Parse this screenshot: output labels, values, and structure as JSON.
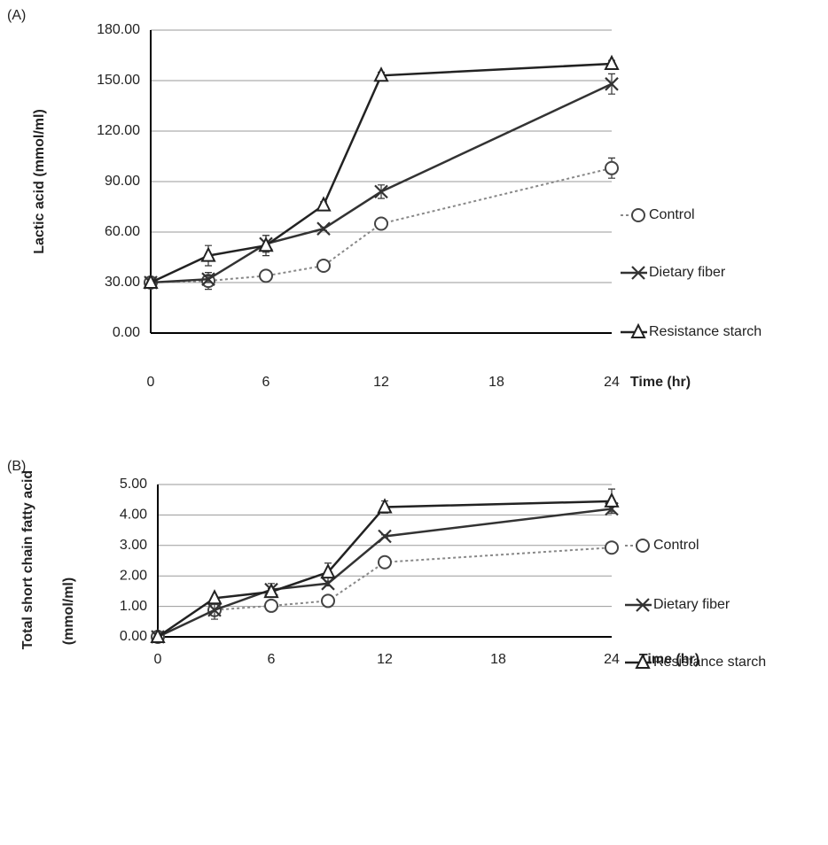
{
  "chart_data": [
    {
      "type": "line",
      "panel_label": "(A)",
      "y_label": [
        "Lactic acid (mmol/ml)"
      ],
      "x_label": "Time (hr)",
      "x": [
        0,
        3,
        6,
        9,
        12,
        24
      ],
      "xlim": [
        0,
        24
      ],
      "xticks": [
        0,
        6,
        12,
        18,
        24
      ],
      "ylim": [
        0,
        180
      ],
      "yticks": [
        {
          "value": 0,
          "label": "0.00"
        },
        {
          "value": 30,
          "label": "30.00"
        },
        {
          "value": 60,
          "label": "60.00"
        },
        {
          "value": 90,
          "label": "90.00"
        },
        {
          "value": 120,
          "label": "120.00"
        },
        {
          "value": 150,
          "label": "150.00"
        },
        {
          "value": 180,
          "label": "180.00"
        }
      ],
      "grid": true,
      "legend": "right",
      "series": [
        {
          "name": "Control",
          "color": "#888888",
          "marker": "circle",
          "line_style": "dotted",
          "values": [
            30,
            31,
            34,
            40,
            65,
            98
          ],
          "errors": [
            1,
            5,
            2,
            2,
            2,
            6
          ]
        },
        {
          "name": "Dietary fiber",
          "color": "#333333",
          "marker": "x",
          "line_style": "solid",
          "values": [
            30,
            32,
            53,
            62,
            84,
            148
          ],
          "errors": [
            1,
            2,
            5,
            1,
            4,
            6
          ]
        },
        {
          "name": "Resistance starch",
          "color": "#222222",
          "marker": "triangle",
          "line_style": "solid",
          "values": [
            30,
            46,
            52,
            76,
            153,
            160
          ],
          "errors": [
            2,
            6,
            6,
            2,
            2,
            2
          ]
        }
      ]
    },
    {
      "type": "line",
      "panel_label": "(B)",
      "y_label": [
        "Total short chain  fatty acid",
        "(mmol/ml)"
      ],
      "x_label": "Time (hr)",
      "x": [
        0,
        3,
        6,
        9,
        12,
        24
      ],
      "xlim": [
        0,
        24
      ],
      "xticks": [
        0,
        6,
        12,
        18,
        24
      ],
      "ylim": [
        0,
        5
      ],
      "yticks": [
        {
          "value": 0,
          "label": "0.00"
        },
        {
          "value": 1,
          "label": "1.00"
        },
        {
          "value": 2,
          "label": "2.00"
        },
        {
          "value": 3,
          "label": "3.00"
        },
        {
          "value": 4,
          "label": "4.00"
        },
        {
          "value": 5,
          "label": "5.00"
        }
      ],
      "grid": true,
      "legend": "right",
      "series": [
        {
          "name": "Control",
          "color": "#888888",
          "marker": "circle",
          "line_style": "dotted",
          "values": [
            0,
            0.88,
            1.02,
            1.18,
            2.45,
            2.93
          ],
          "errors": [
            0.02,
            0.1,
            0.03,
            0.03,
            0.05,
            0.05
          ]
        },
        {
          "name": "Dietary fiber",
          "color": "#333333",
          "marker": "x",
          "line_style": "solid",
          "values": [
            0,
            0.88,
            1.55,
            1.75,
            3.3,
            4.2
          ],
          "errors": [
            0.02,
            0.3,
            0.2,
            0.08,
            0.05,
            0.1
          ]
        },
        {
          "name": "Resistance starch",
          "color": "#222222",
          "marker": "triangle",
          "line_style": "solid",
          "values": [
            0,
            1.27,
            1.48,
            2.12,
            4.26,
            4.45
          ],
          "errors": [
            0.02,
            0.05,
            0.1,
            0.3,
            0.2,
            0.4
          ]
        }
      ]
    }
  ]
}
